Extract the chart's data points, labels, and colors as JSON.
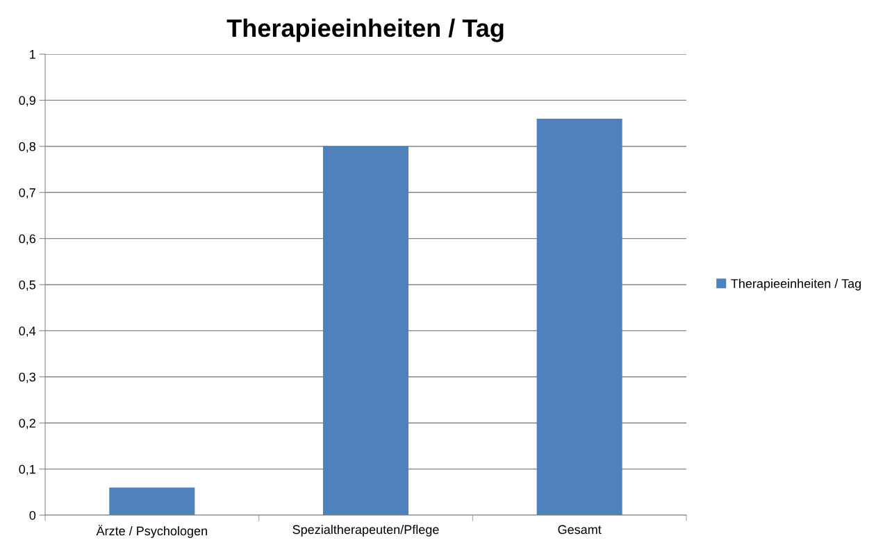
{
  "chart_data": {
    "type": "bar",
    "title": "Therapieeinheiten / Tag",
    "categories": [
      "Ärzte / Psychologen",
      "Spezialtherapeuten/Pflege",
      "Gesamt"
    ],
    "series": [
      {
        "name": "Therapieeinheiten / Tag",
        "color": "#4f81bd",
        "values": [
          0.06,
          0.8,
          0.86
        ]
      }
    ],
    "ylim": [
      0,
      1
    ],
    "yticks": [
      0,
      {
        "value": 0.1,
        "label": "0,1"
      },
      {
        "value": 0.2,
        "label": "0,2"
      },
      {
        "value": 0.3,
        "label": "0,3"
      },
      {
        "value": 0.4,
        "label": "0,4"
      },
      {
        "value": 0.5,
        "label": "0,5"
      },
      {
        "value": 0.6,
        "label": "0,6"
      },
      {
        "value": 0.7,
        "label": "0,7"
      },
      {
        "value": 0.8,
        "label": "0,8"
      },
      {
        "value": 0.9,
        "label": "0,9"
      },
      1
    ],
    "grid": "y",
    "legend": "right"
  }
}
